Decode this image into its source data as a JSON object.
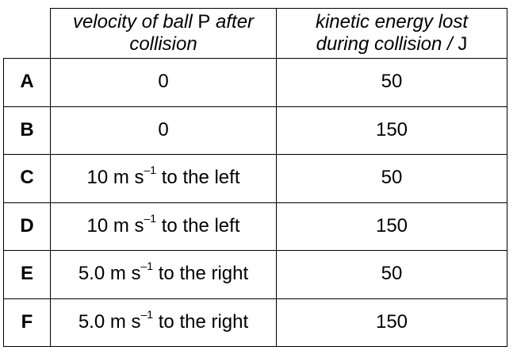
{
  "header": {
    "velocity_line1_italic": "velocity of ball ",
    "velocity_line1_upright": "P",
    "velocity_line1_italic_end": " after",
    "velocity_line2": "collision",
    "energy_line1": "kinetic energy lost",
    "energy_line2_italic": "during collision / ",
    "energy_line2_upright": "J"
  },
  "rows": [
    {
      "letter": "A",
      "velocity": "0",
      "velocity_exp": "",
      "velocity_dir": "",
      "energy": "50"
    },
    {
      "letter": "B",
      "velocity": "0",
      "velocity_exp": "",
      "velocity_dir": "",
      "energy": "150"
    },
    {
      "letter": "C",
      "velocity": "10 m s",
      "velocity_exp": "–1",
      "velocity_dir": " to the left",
      "energy": "50"
    },
    {
      "letter": "D",
      "velocity": "10 m s",
      "velocity_exp": "–1",
      "velocity_dir": " to the left",
      "energy": "150"
    },
    {
      "letter": "E",
      "velocity": "5.0 m s",
      "velocity_exp": "–1",
      "velocity_dir": " to the right",
      "energy": "50"
    },
    {
      "letter": "F",
      "velocity": "5.0 m s",
      "velocity_exp": "–1",
      "velocity_dir": " to the right",
      "energy": "150"
    }
  ]
}
